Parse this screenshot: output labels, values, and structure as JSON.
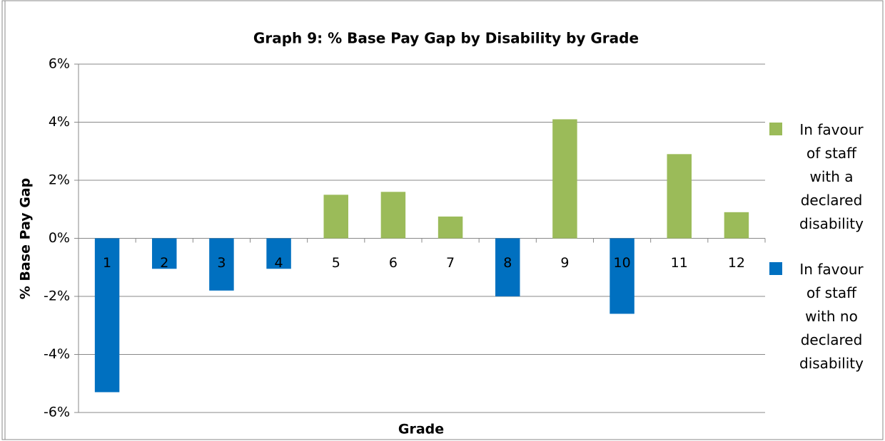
{
  "chart_data": {
    "type": "bar",
    "title": "Graph 9: % Base Pay Gap by Disability by Grade",
    "y_label": "% Base Pay Gap",
    "x_label": "Grade",
    "categories": [
      "1",
      "2",
      "3",
      "4",
      "5",
      "6",
      "7",
      "8",
      "9",
      "10",
      "11",
      "12"
    ],
    "series": [
      {
        "name": "In favour of staff with a declared disability",
        "color": "#9bbb59",
        "values": [
          null,
          null,
          null,
          null,
          1.5,
          1.6,
          0.75,
          null,
          4.1,
          null,
          2.9,
          0.9
        ]
      },
      {
        "name": "In favour of staff with no declared disability",
        "color": "#0070c0",
        "values": [
          -5.3,
          -1.05,
          -1.8,
          -1.05,
          null,
          null,
          null,
          -2.0,
          null,
          -2.6,
          null,
          null
        ]
      }
    ],
    "ylim": [
      -6,
      6
    ],
    "yticks": [
      {
        "value": -6,
        "label": "-6%"
      },
      {
        "value": -4,
        "label": "-4%"
      },
      {
        "value": -2,
        "label": "-2%"
      },
      {
        "value": 0,
        "label": "0%"
      },
      {
        "value": 2,
        "label": "2%"
      },
      {
        "value": 4,
        "label": "4%"
      },
      {
        "value": 6,
        "label": "6%"
      }
    ],
    "grid": true,
    "legend": "right"
  }
}
